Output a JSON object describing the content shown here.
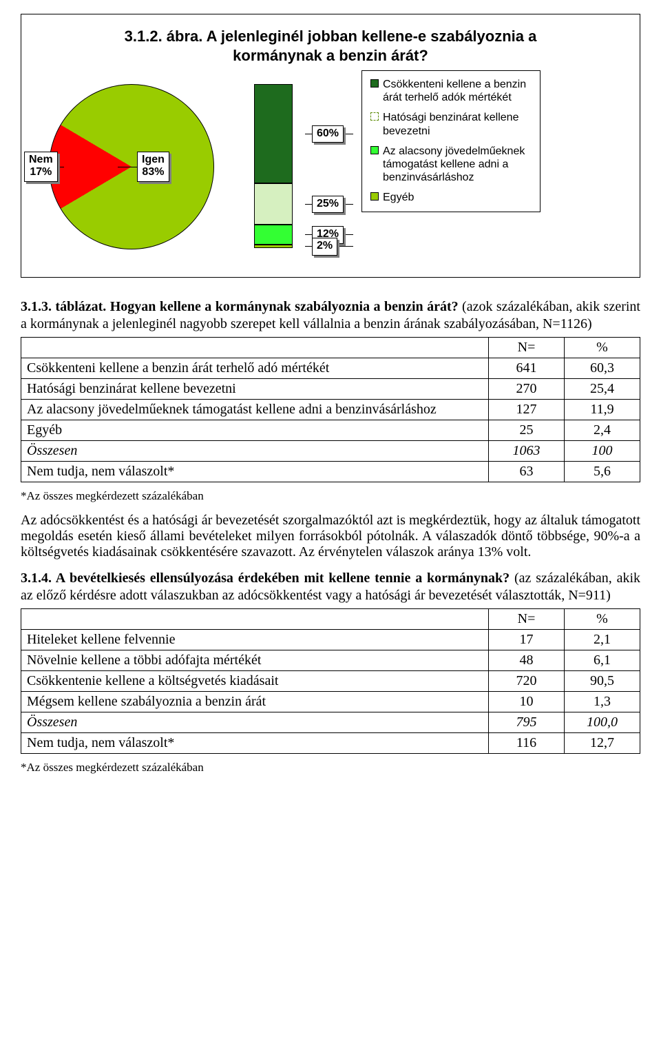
{
  "chart": {
    "title": "3.1.2. ábra. A jelenleginél jobban kellene-e szabályoznia a kormánynak a benzin árát?",
    "pie": {
      "slices": [
        {
          "label": "Nem\n17%",
          "value": 17,
          "color": "#ff0000"
        },
        {
          "label": "Igen\n83%",
          "value": 83,
          "color": "#99cc00"
        }
      ],
      "border_color": "#000000"
    },
    "bar": {
      "segments": [
        {
          "label": "60%",
          "value": 60,
          "color": "#1e6b1e"
        },
        {
          "label": "25%",
          "value": 25,
          "color": "#d6f0c0"
        },
        {
          "label": "12%",
          "value": 12,
          "color": "#33ff33"
        },
        {
          "label": "2%",
          "value": 2,
          "color": "#99cc00"
        }
      ]
    },
    "legend": [
      {
        "swatch": "#1e6b1e",
        "dash": false,
        "text": "Csökkenteni kellene a benzin árát terhelő adók mértékét"
      },
      {
        "swatch": "#ffffff",
        "dash": true,
        "text": "Hatósági benzinárat kellene bevezetni"
      },
      {
        "swatch": "#33ff33",
        "dash": false,
        "text": "Az alacsony jövedelműeknek támogatást kellene adni a benzinvásárláshoz"
      },
      {
        "swatch": "#99cc00",
        "dash": false,
        "text": "Egyéb"
      }
    ]
  },
  "table1": {
    "heading": "3.1.3. táblázat. Hogyan kellene a kormánynak szabályoznia a benzin árát?",
    "desc": " (azok százalékában, akik szerint a kormánynak a jelenleginél nagyobb szerepet kell vállalnia a benzin árának szabályozásában, N=1126)",
    "col_headers": [
      "N=",
      "%"
    ],
    "rows": [
      {
        "label": "Csökkenteni kellene a benzin árát terhelő adó mértékét",
        "n": "641",
        "pct": "60,3",
        "italic": false
      },
      {
        "label": "Hatósági benzinárat kellene bevezetni",
        "n": "270",
        "pct": "25,4",
        "italic": false
      },
      {
        "label": "Az alacsony jövedelműeknek támogatást kellene adni a benzinvásárláshoz",
        "n": "127",
        "pct": "11,9",
        "italic": false
      },
      {
        "label": "Egyéb",
        "n": "25",
        "pct": "2,4",
        "italic": false
      },
      {
        "label": "Összesen",
        "n": "1063",
        "pct": "100",
        "italic": true
      },
      {
        "label": "Nem tudja, nem válaszolt*",
        "n": "63",
        "pct": "5,6",
        "italic": false
      }
    ],
    "footnote": "*Az összes megkérdezett százalékában"
  },
  "paragraph": "Az adócsökkentést és a hatósági ár bevezetését szorgalmazóktól azt is megkérdeztük, hogy az általuk támogatott megoldás esetén kieső állami bevételeket milyen forrásokból pótolnák. A válaszadók döntő többsége, 90%-a a költségvetés kiadásainak csökkentésére szavazott. Az érvénytelen válaszok aránya 13% volt.",
  "table2": {
    "heading": "3.1.4. A bevételkiesés ellensúlyozása érdekében mit kellene tennie a kormánynak?",
    "desc": " (az százalékában, akik az előző kérdésre adott válaszukban az adócsökkentést vagy a hatósági ár bevezetését választották, N=911)",
    "col_headers": [
      "N=",
      "%"
    ],
    "rows": [
      {
        "label": "Hiteleket kellene felvennie",
        "n": "17",
        "pct": "2,1",
        "italic": false
      },
      {
        "label": "Növelnie kellene a többi adófajta mértékét",
        "n": "48",
        "pct": "6,1",
        "italic": false
      },
      {
        "label": "Csökkentenie kellene a költségvetés kiadásait",
        "n": "720",
        "pct": "90,5",
        "italic": false
      },
      {
        "label": "Mégsem kellene szabályoznia a benzin árát",
        "n": "10",
        "pct": "1,3",
        "italic": false
      },
      {
        "label": "Összesen",
        "n": "795",
        "pct": "100,0",
        "italic": true
      },
      {
        "label": "Nem tudja, nem válaszolt*",
        "n": "116",
        "pct": "12,7",
        "italic": false
      }
    ],
    "footnote": "*Az összes megkérdezett százalékában"
  }
}
